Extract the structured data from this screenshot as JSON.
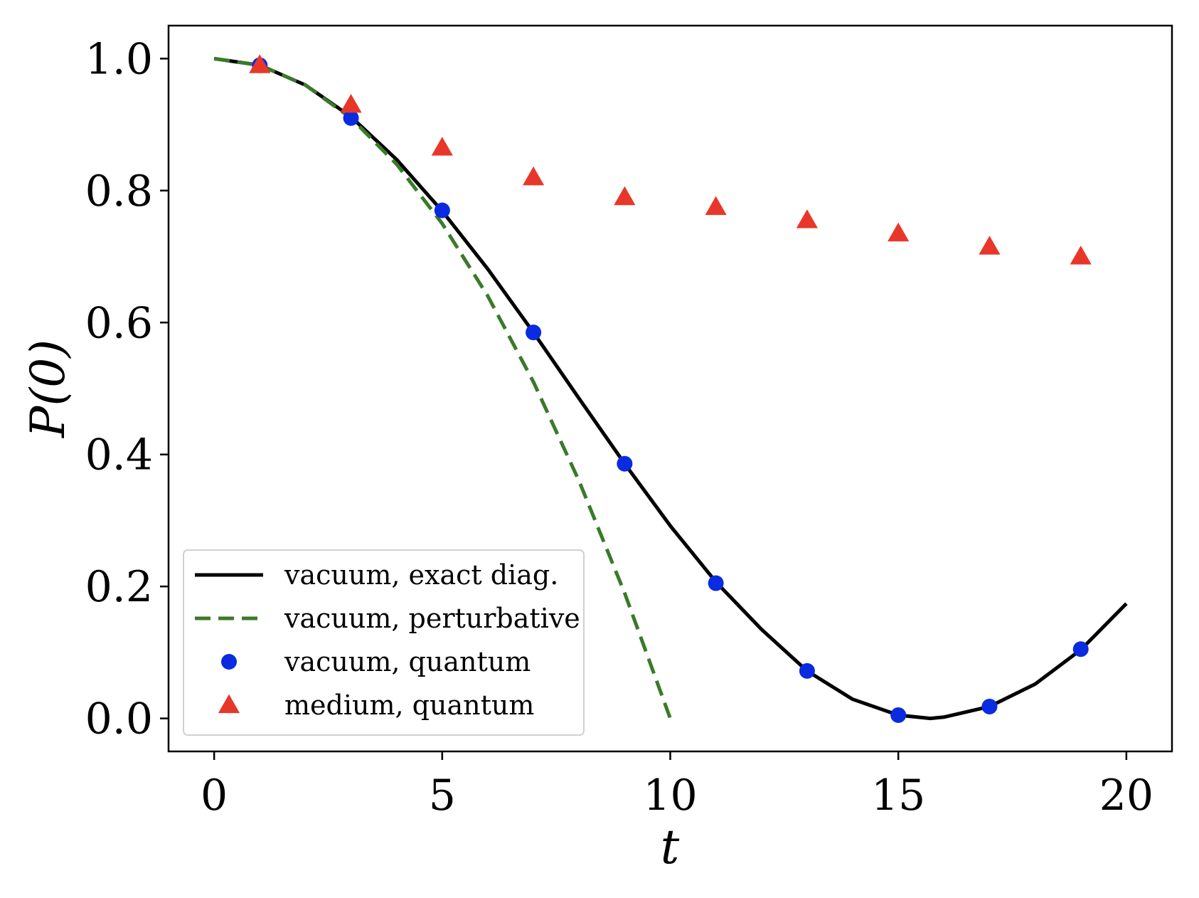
{
  "chart_data": {
    "type": "line",
    "xlabel": "t",
    "ylabel": "P(0)",
    "xlim": [
      -1,
      21
    ],
    "ylim": [
      -0.05,
      1.05
    ],
    "xticks": [
      0,
      5,
      10,
      15,
      20
    ],
    "xtick_labels": [
      "0",
      "5",
      "10",
      "15",
      "20"
    ],
    "yticks": [
      0.0,
      0.2,
      0.4,
      0.6,
      0.8,
      1.0
    ],
    "ytick_labels": [
      "0.0",
      "0.2",
      "0.4",
      "0.6",
      "0.8",
      "1.0"
    ],
    "grid": false,
    "legend_position": "lower-left",
    "series": [
      {
        "name": "vacuum, exact diag.",
        "kind": "line",
        "style": "solid",
        "color": "#000000",
        "x": [
          0,
          1,
          2,
          3,
          4,
          5,
          6,
          7,
          8,
          9,
          10,
          11,
          12,
          13,
          14,
          15,
          15.7,
          16,
          17,
          18,
          19,
          20
        ],
        "y": [
          1.0,
          0.99,
          0.96,
          0.912,
          0.847,
          0.769,
          0.681,
          0.585,
          0.485,
          0.386,
          0.292,
          0.207,
          0.135,
          0.072,
          0.029,
          0.005,
          0.0,
          0.002,
          0.018,
          0.052,
          0.104,
          0.174
        ]
      },
      {
        "name": "vacuum, perturbative",
        "kind": "line",
        "style": "dashed",
        "color": "#3a7a2a",
        "x": [
          0,
          1,
          2,
          3,
          4,
          5,
          6,
          7,
          8,
          9,
          10
        ],
        "y": [
          1.0,
          0.99,
          0.96,
          0.91,
          0.84,
          0.75,
          0.64,
          0.51,
          0.36,
          0.19,
          0.0
        ]
      },
      {
        "name": "vacuum, quantum",
        "kind": "scatter",
        "marker": "circle",
        "color": "#0a2be0",
        "x": [
          1,
          3,
          5,
          7,
          9,
          11,
          13,
          15,
          17,
          19
        ],
        "y": [
          0.99,
          0.91,
          0.77,
          0.585,
          0.386,
          0.205,
          0.072,
          0.005,
          0.018,
          0.105
        ]
      },
      {
        "name": "medium, quantum",
        "kind": "scatter",
        "marker": "triangle",
        "color": "#e8372a",
        "x": [
          1,
          3,
          5,
          7,
          9,
          11,
          13,
          15,
          17,
          19
        ],
        "y": [
          0.99,
          0.93,
          0.865,
          0.82,
          0.79,
          0.775,
          0.755,
          0.735,
          0.715,
          0.7
        ]
      }
    ]
  }
}
